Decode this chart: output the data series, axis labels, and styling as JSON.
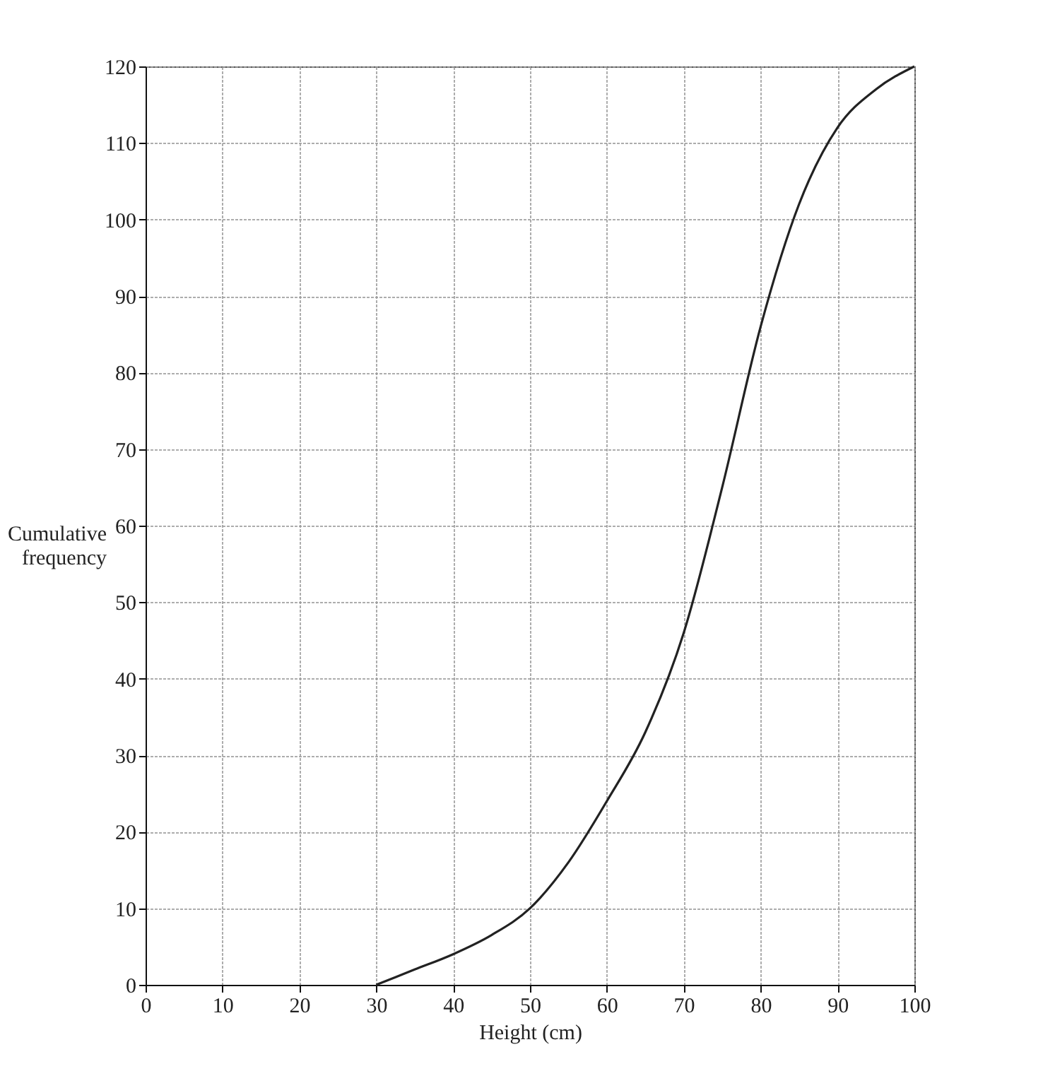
{
  "chart_data": {
    "type": "line",
    "xlabel": "Height (cm)",
    "ylabel": "Cumulative frequency",
    "x": [
      30,
      35,
      40,
      45,
      50,
      55,
      60,
      65,
      70,
      75,
      80,
      85,
      90,
      95,
      100
    ],
    "series": [
      {
        "color": "#222222",
        "values": [
          0,
          2,
          4,
          6.5,
          10,
          16,
          24,
          33,
          46,
          65,
          86,
          102,
          112,
          117,
          120
        ]
      }
    ],
    "xlim": [
      0,
      100
    ],
    "xticks": [
      0,
      10,
      20,
      30,
      40,
      50,
      60,
      70,
      80,
      90,
      100
    ],
    "ylim": [
      0,
      120
    ],
    "yticks": [
      0,
      10,
      20,
      30,
      40,
      50,
      60,
      70,
      80,
      90,
      100,
      110,
      120
    ],
    "grid": true,
    "marker": "none",
    "line_style": "solid"
  }
}
